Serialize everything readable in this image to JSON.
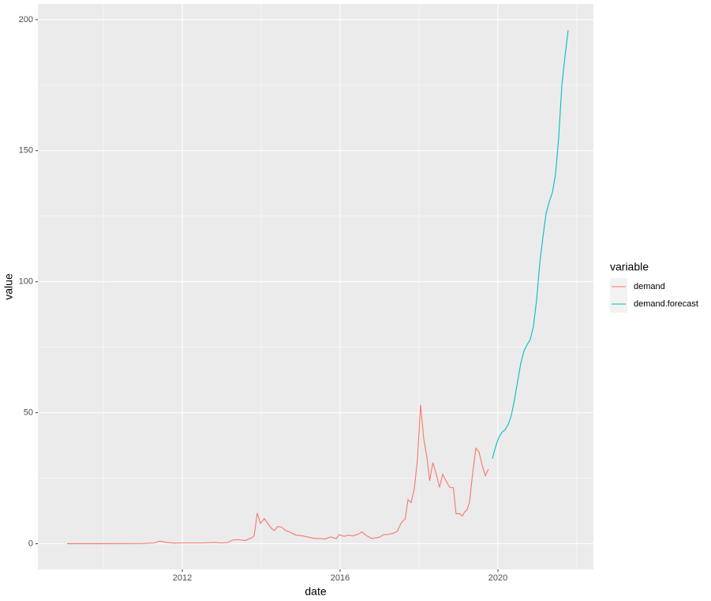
{
  "chart_data": {
    "type": "line",
    "x_label": "date",
    "y_label": "value",
    "legend_title": "variable",
    "xlim": [
      2008.34,
      2022.42
    ],
    "ylim": [
      -9.8,
      206
    ],
    "xticks": [
      2012,
      2016,
      2020
    ],
    "x_minor_ticks": [
      2010,
      2014,
      2018,
      2022
    ],
    "yticks": [
      0,
      50,
      100,
      150,
      200
    ],
    "y_minor_ticks": [
      25,
      75,
      125,
      175
    ],
    "grid": true,
    "legend": "right",
    "series": [
      {
        "name": "demand",
        "color": "#F8766D",
        "x": [
          2009.08,
          2010,
          2011,
          2011.3,
          2011.42,
          2011.6,
          2011.8,
          2012,
          2012.5,
          2012.8,
          2013.0,
          2013.15,
          2013.3,
          2013.45,
          2013.6,
          2013.7,
          2013.76,
          2013.82,
          2013.9,
          2013.98,
          2014.08,
          2014.25,
          2014.33,
          2014.42,
          2014.52,
          2014.62,
          2014.72,
          2014.88,
          2015.05,
          2015.2,
          2015.35,
          2015.5,
          2015.62,
          2015.75,
          2015.9,
          2015.98,
          2016.1,
          2016.2,
          2016.32,
          2016.45,
          2016.55,
          2016.68,
          2016.8,
          2017.0,
          2017.1,
          2017.2,
          2017.35,
          2017.45,
          2017.55,
          2017.65,
          2017.72,
          2017.8,
          2017.88,
          2017.96,
          2018.04,
          2018.12,
          2018.2,
          2018.27,
          2018.35,
          2018.43,
          2018.52,
          2018.6,
          2018.7,
          2018.78,
          2018.87,
          2018.94,
          2019.02,
          2019.1,
          2019.15,
          2019.22,
          2019.28,
          2019.36,
          2019.44,
          2019.52,
          2019.6,
          2019.68,
          2019.76
        ],
        "values": [
          0,
          0,
          0.1,
          0.3,
          1,
          0.5,
          0.2,
          0.3,
          0.3,
          0.5,
          0.3,
          0.5,
          1.5,
          1.5,
          1.2,
          2,
          2.2,
          3,
          11.7,
          7.8,
          9.6,
          6,
          5,
          6.6,
          6.3,
          5,
          4.5,
          3.3,
          3,
          2.5,
          2,
          2,
          1.8,
          2.6,
          2,
          3.5,
          2.8,
          3.3,
          3,
          3.6,
          4.5,
          3,
          2,
          2.5,
          3.5,
          3.5,
          4,
          4.8,
          8,
          9.5,
          16.8,
          15.7,
          21,
          32,
          53,
          40,
          33,
          24,
          31,
          27,
          21.5,
          26.5,
          23.5,
          21.5,
          21.4,
          11.4,
          11.5,
          10.6,
          12,
          13,
          16,
          27,
          36.5,
          35,
          30,
          26,
          28.5
        ]
      },
      {
        "name": "demand.forecast",
        "color": "#00BFC4",
        "x": [
          2019.86,
          2019.94,
          2020.02,
          2020.1,
          2020.18,
          2020.26,
          2020.34,
          2020.42,
          2020.5,
          2020.58,
          2020.66,
          2020.74,
          2020.82,
          2020.9,
          2020.98,
          2021.06,
          2021.14,
          2021.22,
          2021.3,
          2021.38,
          2021.46,
          2021.54,
          2021.62,
          2021.7,
          2021.78
        ],
        "values": [
          32.5,
          37,
          40.5,
          42.5,
          43.5,
          45.5,
          49,
          55,
          62,
          69,
          73.5,
          76,
          78,
          83,
          93,
          107,
          117,
          126,
          130.5,
          134,
          141,
          155,
          175,
          186,
          196
        ]
      }
    ]
  }
}
